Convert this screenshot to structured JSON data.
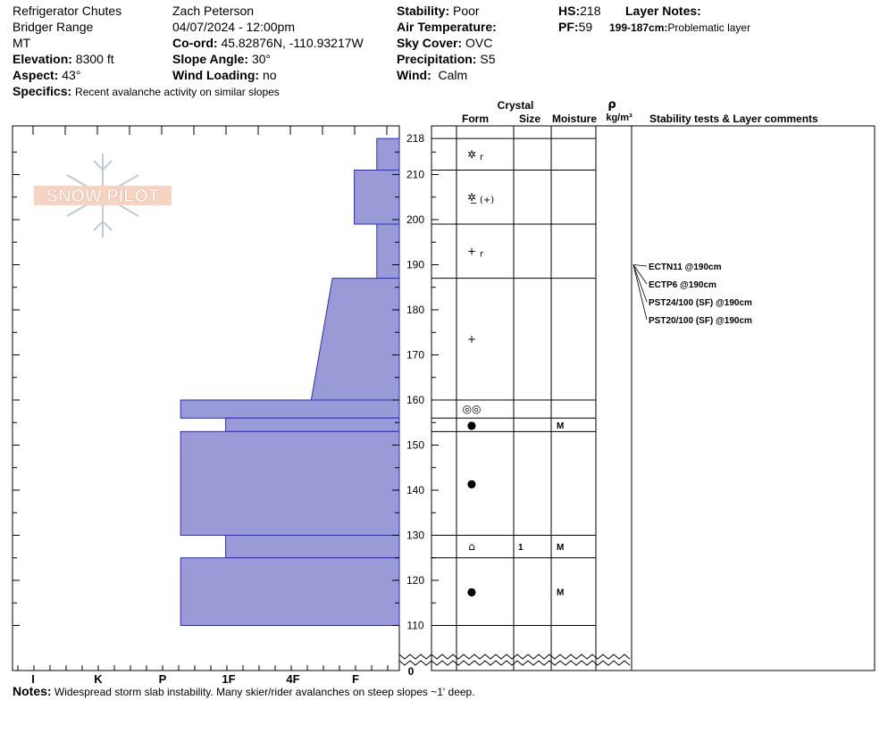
{
  "header": {
    "location": "Refrigerator Chutes",
    "range": "Bridger Range",
    "state": "MT",
    "elevation_label": "Elevation:",
    "elevation_value": "8300 ft",
    "aspect_label": "Aspect:",
    "aspect_value": "43°",
    "specifics_label": "Specifics:",
    "specifics_value": "Recent avalanche activity on similar slopes",
    "observer": "Zach Peterson",
    "datetime": "04/07/2024 - 12:00pm",
    "coord_label": "Co-ord:",
    "coord_value": "45.82876N, -110.93217W",
    "slope_label": "Slope Angle:",
    "slope_value": "30°",
    "wind_loading_label": "Wind Loading:",
    "wind_loading_value": "no",
    "stability_label": "Stability:",
    "stability_value": "Poor",
    "air_temp_label": "Air Temperature:",
    "air_temp_value": "",
    "sky_label": "Sky Cover:",
    "sky_value": "OVC",
    "precip_label": "Precipitation:",
    "precip_value": "S5",
    "wind_label": "Wind:",
    "wind_value": "Calm",
    "hs_label": "HS:",
    "hs_value": "218",
    "pf_label": "PF:",
    "pf_value": "59",
    "layer_notes_label": "Layer Notes:",
    "layer_note_depth": "199-187cm:",
    "layer_note_text": "Problematic layer"
  },
  "logo_text": "SNOW PILOT",
  "columns": {
    "crystal": "Crystal",
    "form": "Form",
    "size": "Size",
    "moisture": "Moisture",
    "rho": "ρ",
    "density_unit": "kg/m³",
    "stability": "Stability tests & Layer comments"
  },
  "notes_label": "Notes:",
  "notes_text": "Widespread storm slab instability. Many skier/rider avalanches on steep slopes ~1' deep.",
  "colors": {
    "hardness_fill": "#9a9ad6",
    "hardness_stroke": "#2a2acc"
  },
  "chart_data": {
    "type": "snow-profile",
    "height_axis_ticks": [
      110,
      120,
      130,
      140,
      150,
      160,
      170,
      180,
      190,
      200,
      210,
      218
    ],
    "zero_label": "0",
    "height_range": [
      106,
      222
    ],
    "hardness_scale": [
      "I",
      "K",
      "P",
      "1F",
      "4F",
      "F"
    ],
    "hardness_layers": [
      {
        "top": 218,
        "bottom": 211,
        "hardness": 0.35,
        "hardness_bottom": 0.35
      },
      {
        "top": 211,
        "bottom": 199,
        "hardness": 0.7,
        "hardness_bottom": 0.7
      },
      {
        "top": 199,
        "bottom": 187,
        "hardness": 0.35,
        "hardness_bottom": 0.35
      },
      {
        "top": 187,
        "bottom": 160,
        "hardness": 1.04,
        "hardness_bottom": 1.37
      },
      {
        "top": 160,
        "bottom": 156,
        "hardness": 3.4,
        "hardness_bottom": 3.4
      },
      {
        "top": 156,
        "bottom": 153,
        "hardness": 2.7,
        "hardness_bottom": 2.7
      },
      {
        "top": 153,
        "bottom": 130,
        "hardness": 3.4,
        "hardness_bottom": 3.4
      },
      {
        "top": 130,
        "bottom": 125,
        "hardness": 2.7,
        "hardness_bottom": 2.7
      },
      {
        "top": 125,
        "bottom": 110,
        "hardness": 3.4,
        "hardness_bottom": 3.4
      }
    ],
    "layer_boundaries": [
      218,
      211,
      199,
      187,
      160,
      156,
      153,
      130,
      125,
      110
    ],
    "layers_table": [
      {
        "top": 218,
        "bottom": 211,
        "form": "✲",
        "form_sub": "r",
        "size": "",
        "moisture": ""
      },
      {
        "top": 211,
        "bottom": 199,
        "form": "✲̲",
        "form_sub": "(+)",
        "size": "",
        "moisture": ""
      },
      {
        "top": 199,
        "bottom": 187,
        "form": "+",
        "form_sub": "r",
        "size": "",
        "moisture": ""
      },
      {
        "top": 187,
        "bottom": 160,
        "form": "+",
        "form_sub": "",
        "size": "",
        "moisture": ""
      },
      {
        "top": 160,
        "bottom": 156,
        "form": "◎◎",
        "form_sub": "",
        "size": "",
        "moisture": ""
      },
      {
        "top": 156,
        "bottom": 153,
        "form": "●",
        "form_sub": "",
        "size": "",
        "moisture": "M"
      },
      {
        "top": 153,
        "bottom": 130,
        "form": "●",
        "form_sub": "",
        "size": "",
        "moisture": ""
      },
      {
        "top": 130,
        "bottom": 125,
        "form": "⌂",
        "form_sub": "",
        "size": "1",
        "moisture": "M"
      },
      {
        "top": 125,
        "bottom": 110,
        "form": "●",
        "form_sub": "",
        "size": "",
        "moisture": "M"
      }
    ],
    "stability_tests": [
      {
        "label": "ECTN11 @190cm",
        "depth": 190
      },
      {
        "label": "ECTP6 @190cm",
        "depth": 190
      },
      {
        "label": "PST24/100 (SF) @190cm",
        "depth": 190
      },
      {
        "label": "PST20/100 (SF) @190cm",
        "depth": 190
      }
    ]
  }
}
